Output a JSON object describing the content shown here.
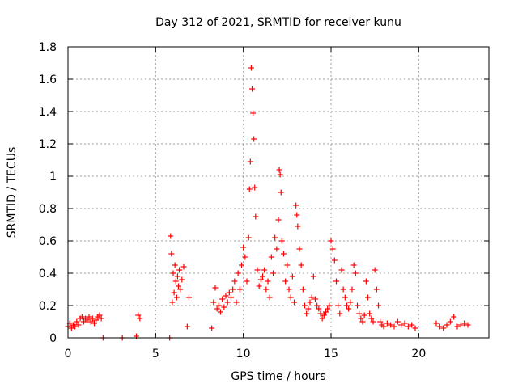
{
  "chart_data": {
    "type": "scatter",
    "title": "Day 312 of 2021, SRMTID for receiver kunu",
    "xlabel": "GPS time / hours",
    "ylabel": "SRMTID / TECUs",
    "xlim": [
      0,
      24
    ],
    "ylim": [
      0,
      1.8
    ],
    "xticks": [
      0,
      5,
      10,
      15,
      20
    ],
    "yticks": [
      0,
      0.2,
      0.4,
      0.6,
      0.8,
      1,
      1.2,
      1.4,
      1.6,
      1.8
    ],
    "xtick_labels": [
      "0",
      "5",
      "10",
      "15",
      "20"
    ],
    "ytick_labels": [
      "0",
      "0.2",
      "0.4",
      "0.6",
      "0.8",
      "1",
      "1.2",
      "1.4",
      "1.6",
      "1.8"
    ],
    "grid": true,
    "marker": "+",
    "color": "#ff0000",
    "series": [
      {
        "name": "SRMTID",
        "x": [
          0.0,
          0.1,
          0.2,
          0.3,
          0.4,
          0.5,
          0.6,
          0.7,
          0.8,
          0.9,
          1.0,
          1.1,
          1.2,
          1.3,
          1.4,
          1.5,
          1.6,
          1.7,
          1.8,
          1.9,
          2.0,
          3.1,
          3.9,
          4.0,
          4.1,
          5.8,
          5.85,
          5.9,
          5.95,
          6.0,
          6.05,
          6.1,
          6.15,
          6.2,
          6.25,
          6.3,
          6.35,
          6.4,
          6.5,
          6.6,
          6.8,
          6.9,
          8.2,
          8.3,
          8.4,
          8.5,
          8.6,
          8.7,
          8.8,
          8.9,
          9.0,
          9.1,
          9.2,
          9.3,
          9.4,
          9.5,
          9.6,
          9.7,
          9.8,
          9.9,
          10.0,
          10.1,
          10.2,
          10.3,
          10.35,
          10.4,
          10.45,
          10.5,
          10.55,
          10.6,
          10.65,
          10.7,
          10.8,
          10.9,
          11.0,
          11.1,
          11.2,
          11.3,
          11.4,
          11.5,
          11.6,
          11.7,
          11.8,
          11.9,
          12.0,
          12.05,
          12.1,
          12.15,
          12.2,
          12.3,
          12.4,
          12.5,
          12.6,
          12.7,
          12.8,
          12.9,
          13.0,
          13.05,
          13.1,
          13.2,
          13.3,
          13.4,
          13.5,
          13.6,
          13.7,
          13.8,
          13.9,
          14.0,
          14.1,
          14.2,
          14.3,
          14.4,
          14.5,
          14.6,
          14.7,
          14.8,
          14.9,
          15.0,
          15.1,
          15.2,
          15.3,
          15.4,
          15.5,
          15.6,
          15.7,
          15.8,
          15.9,
          16.0,
          16.1,
          16.2,
          16.3,
          16.4,
          16.5,
          16.6,
          16.7,
          16.8,
          16.9,
          17.0,
          17.1,
          17.2,
          17.3,
          17.4,
          17.5,
          17.6,
          17.7,
          17.8,
          17.9,
          18.0,
          18.2,
          18.4,
          18.6,
          18.8,
          19.0,
          19.2,
          19.4,
          19.6,
          19.8,
          21.0,
          21.2,
          21.4,
          21.6,
          21.8,
          22.0,
          22.2,
          22.4,
          22.6,
          22.8
        ],
        "y": [
          0.07,
          0.09,
          0.06,
          0.08,
          0.07,
          0.1,
          0.08,
          0.12,
          0.13,
          0.1,
          0.12,
          0.11,
          0.13,
          0.1,
          0.12,
          0.09,
          0.11,
          0.13,
          0.14,
          0.12,
          0.0,
          0.0,
          0.01,
          0.14,
          0.12,
          0.0,
          0.63,
          0.52,
          0.22,
          0.4,
          0.28,
          0.45,
          0.35,
          0.25,
          0.38,
          0.32,
          0.42,
          0.3,
          0.36,
          0.44,
          0.07,
          0.25,
          0.06,
          0.22,
          0.31,
          0.18,
          0.2,
          0.16,
          0.24,
          0.19,
          0.26,
          0.22,
          0.28,
          0.25,
          0.3,
          0.35,
          0.22,
          0.4,
          0.3,
          0.45,
          0.56,
          0.5,
          0.35,
          0.62,
          0.92,
          1.09,
          1.67,
          1.54,
          1.39,
          1.23,
          0.93,
          0.75,
          0.42,
          0.32,
          0.36,
          0.38,
          0.42,
          0.3,
          0.35,
          0.25,
          0.5,
          0.4,
          0.62,
          0.55,
          0.73,
          1.04,
          1.01,
          0.9,
          0.6,
          0.52,
          0.35,
          0.45,
          0.3,
          0.25,
          0.38,
          0.22,
          0.82,
          0.76,
          0.69,
          0.55,
          0.45,
          0.3,
          0.2,
          0.15,
          0.18,
          0.22,
          0.25,
          0.38,
          0.24,
          0.2,
          0.18,
          0.15,
          0.12,
          0.14,
          0.16,
          0.18,
          0.2,
          0.6,
          0.55,
          0.48,
          0.35,
          0.2,
          0.15,
          0.42,
          0.3,
          0.25,
          0.2,
          0.18,
          0.22,
          0.3,
          0.45,
          0.4,
          0.2,
          0.15,
          0.12,
          0.1,
          0.14,
          0.35,
          0.25,
          0.15,
          0.12,
          0.1,
          0.42,
          0.3,
          0.2,
          0.1,
          0.08,
          0.07,
          0.09,
          0.08,
          0.07,
          0.1,
          0.08,
          0.09,
          0.07,
          0.08,
          0.06,
          0.09,
          0.07,
          0.06,
          0.08,
          0.1,
          0.13,
          0.07,
          0.08,
          0.09,
          0.08
        ]
      }
    ]
  }
}
